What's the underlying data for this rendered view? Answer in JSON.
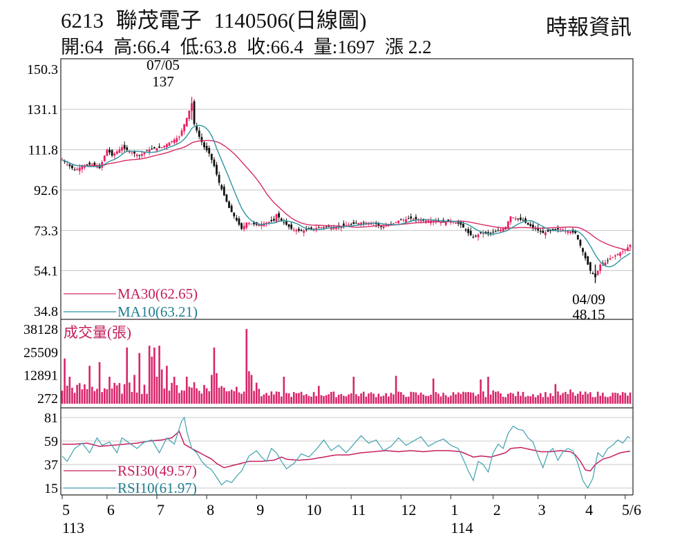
{
  "header": {
    "code": "6213",
    "name": "聯茂電子",
    "date_label": "1140506(日線圖)",
    "source": "時報資訊",
    "open": "開:64",
    "high": "高:66.4",
    "low": "低:63.8",
    "close": "收:66.4",
    "volume": "量:1697",
    "change": "漲 2.2"
  },
  "colors": {
    "up": "#e8205e",
    "down": "#111111",
    "ma30": "#d62a65",
    "ma10": "#2b94a3",
    "volume": "#d8246a",
    "rsi30": "#c41e5e",
    "rsi10": "#3e9fae",
    "grid": "#c8c8c8"
  },
  "chart_data": {
    "type": "candlestick",
    "x_months": [
      {
        "label": "5",
        "year": "113"
      },
      {
        "label": "6"
      },
      {
        "label": "7"
      },
      {
        "label": "8"
      },
      {
        "label": "9"
      },
      {
        "label": "10"
      },
      {
        "label": "11"
      },
      {
        "label": "12"
      },
      {
        "label": "1",
        "year": "114"
      },
      {
        "label": "2"
      },
      {
        "label": "3"
      },
      {
        "label": "4"
      },
      {
        "label": "5/6"
      }
    ],
    "price": {
      "y_ticks": [
        "150.3",
        "131.1",
        "111.8",
        "92.6",
        "73.3",
        "54.1",
        "34.8"
      ],
      "ylim": [
        34.8,
        150.3
      ],
      "annotations": [
        {
          "date": "07/05",
          "value": "137"
        },
        {
          "date": "04/09",
          "value": "48.15"
        }
      ],
      "legend": [
        "MA30(62.65)",
        "MA10(63.21)"
      ],
      "close_keypoints": [
        [
          0,
          107
        ],
        [
          5,
          102
        ],
        [
          8,
          104
        ],
        [
          12,
          105
        ],
        [
          15,
          103
        ],
        [
          18,
          112
        ],
        [
          20,
          109
        ],
        [
          24,
          113
        ],
        [
          27,
          111
        ],
        [
          31,
          109
        ],
        [
          35,
          112
        ],
        [
          40,
          113
        ],
        [
          44,
          116
        ],
        [
          47,
          118
        ],
        [
          50,
          127
        ],
        [
          52,
          134
        ],
        [
          53,
          124
        ],
        [
          55,
          118
        ],
        [
          57,
          113
        ],
        [
          59,
          110
        ],
        [
          61,
          104
        ],
        [
          63,
          96
        ],
        [
          65,
          90
        ],
        [
          67,
          84
        ],
        [
          70,
          78
        ],
        [
          72,
          74
        ],
        [
          74,
          77
        ],
        [
          78,
          76
        ],
        [
          82,
          77
        ],
        [
          85,
          78
        ],
        [
          86,
          81
        ],
        [
          88,
          78
        ],
        [
          90,
          76
        ],
        [
          92,
          74
        ],
        [
          96,
          73
        ],
        [
          100,
          74
        ],
        [
          105,
          75
        ],
        [
          110,
          75
        ],
        [
          115,
          76
        ],
        [
          120,
          77
        ],
        [
          125,
          77
        ],
        [
          128,
          75
        ],
        [
          132,
          76
        ],
        [
          135,
          78
        ],
        [
          140,
          79
        ],
        [
          145,
          78
        ],
        [
          150,
          78
        ],
        [
          153,
          77
        ],
        [
          156,
          78
        ],
        [
          160,
          76
        ],
        [
          163,
          72
        ],
        [
          165,
          70
        ],
        [
          168,
          72
        ],
        [
          172,
          72
        ],
        [
          175,
          73
        ],
        [
          178,
          75
        ],
        [
          180,
          80
        ],
        [
          182,
          79
        ],
        [
          185,
          78
        ],
        [
          187,
          76
        ],
        [
          190,
          74
        ],
        [
          193,
          72
        ],
        [
          196,
          73
        ],
        [
          200,
          74
        ],
        [
          203,
          73
        ],
        [
          206,
          72
        ],
        [
          208,
          66
        ],
        [
          210,
          60
        ],
        [
          212,
          54
        ],
        [
          214,
          51
        ],
        [
          216,
          57
        ],
        [
          218,
          58
        ],
        [
          220,
          60
        ],
        [
          223,
          62
        ],
        [
          226,
          64
        ],
        [
          228,
          66.4
        ]
      ],
      "ma30_final": 62.65,
      "ma10_final": 63.21
    },
    "volume": {
      "title": "成交量(張)",
      "y_ticks": [
        "38128",
        "25509",
        "12891",
        "272"
      ],
      "ylim": [
        272,
        38128
      ],
      "spikes": [
        [
          1,
          22000
        ],
        [
          3,
          12000
        ],
        [
          11,
          18000
        ],
        [
          15,
          20000
        ],
        [
          19,
          12000
        ],
        [
          26,
          28000
        ],
        [
          29,
          13000
        ],
        [
          31,
          25000
        ],
        [
          35,
          29000
        ],
        [
          36,
          23000
        ],
        [
          37,
          28000
        ],
        [
          38,
          12000
        ],
        [
          39,
          29000
        ],
        [
          40,
          16000
        ],
        [
          42,
          18000
        ],
        [
          45,
          12000
        ],
        [
          50,
          12000
        ],
        [
          53,
          9000
        ],
        [
          60,
          13000
        ],
        [
          61,
          28000
        ],
        [
          62,
          14000
        ],
        [
          74,
          38128
        ],
        [
          75,
          15000
        ],
        [
          76,
          13000
        ],
        [
          89,
          12000
        ],
        [
          103,
          7000
        ],
        [
          117,
          12000
        ],
        [
          134,
          12500
        ],
        [
          149,
          11000
        ],
        [
          168,
          10500
        ],
        [
          171,
          12000
        ],
        [
          173,
          4500
        ],
        [
          175,
          4000
        ],
        [
          198,
          8000
        ],
        [
          204,
          5000
        ]
      ]
    },
    "rsi": {
      "y_ticks": [
        "81",
        "59",
        "37",
        "15"
      ],
      "ylim": [
        15,
        81
      ],
      "legend": [
        "RSI30(49.57)",
        "RSI10(61.97)"
      ],
      "rsi30_keypoints": [
        [
          0,
          56
        ],
        [
          5,
          56
        ],
        [
          10,
          57
        ],
        [
          15,
          54
        ],
        [
          20,
          55
        ],
        [
          25,
          56
        ],
        [
          30,
          57
        ],
        [
          35,
          59
        ],
        [
          40,
          60
        ],
        [
          44,
          62
        ],
        [
          47,
          68
        ],
        [
          49,
          56
        ],
        [
          52,
          52
        ],
        [
          56,
          47
        ],
        [
          60,
          42
        ],
        [
          62,
          38
        ],
        [
          65,
          34
        ],
        [
          70,
          37
        ],
        [
          75,
          40
        ],
        [
          80,
          40
        ],
        [
          85,
          41
        ],
        [
          88,
          44
        ],
        [
          90,
          42
        ],
        [
          95,
          41
        ],
        [
          100,
          42
        ],
        [
          105,
          44
        ],
        [
          110,
          46
        ],
        [
          115,
          46
        ],
        [
          120,
          48
        ],
        [
          125,
          49
        ],
        [
          130,
          50
        ],
        [
          135,
          49
        ],
        [
          140,
          50
        ],
        [
          145,
          49
        ],
        [
          150,
          50
        ],
        [
          155,
          50
        ],
        [
          160,
          49
        ],
        [
          163,
          46
        ],
        [
          165,
          44
        ],
        [
          168,
          45
        ],
        [
          172,
          44
        ],
        [
          175,
          46
        ],
        [
          178,
          48
        ],
        [
          180,
          52
        ],
        [
          184,
          53
        ],
        [
          188,
          51
        ],
        [
          192,
          49
        ],
        [
          196,
          49
        ],
        [
          200,
          50
        ],
        [
          204,
          49
        ],
        [
          206,
          46
        ],
        [
          208,
          40
        ],
        [
          210,
          32
        ],
        [
          212,
          31
        ],
        [
          214,
          37
        ],
        [
          217,
          42
        ],
        [
          220,
          44
        ],
        [
          224,
          48
        ],
        [
          228,
          49.57
        ]
      ],
      "rsi10_keypoints": [
        [
          0,
          45
        ],
        [
          2,
          40
        ],
        [
          5,
          52
        ],
        [
          8,
          57
        ],
        [
          11,
          48
        ],
        [
          14,
          62
        ],
        [
          16,
          55
        ],
        [
          19,
          58
        ],
        [
          22,
          48
        ],
        [
          24,
          62
        ],
        [
          27,
          57
        ],
        [
          30,
          52
        ],
        [
          33,
          58
        ],
        [
          36,
          60
        ],
        [
          39,
          48
        ],
        [
          42,
          62
        ],
        [
          45,
          56
        ],
        [
          48,
          78
        ],
        [
          49,
          81
        ],
        [
          50,
          68
        ],
        [
          52,
          52
        ],
        [
          54,
          48
        ],
        [
          56,
          40
        ],
        [
          58,
          35
        ],
        [
          60,
          32
        ],
        [
          62,
          25
        ],
        [
          64,
          18
        ],
        [
          66,
          22
        ],
        [
          68,
          20
        ],
        [
          70,
          26
        ],
        [
          72,
          31
        ],
        [
          75,
          45
        ],
        [
          78,
          50
        ],
        [
          80,
          44
        ],
        [
          82,
          40
        ],
        [
          84,
          52
        ],
        [
          86,
          48
        ],
        [
          88,
          40
        ],
        [
          90,
          33
        ],
        [
          93,
          38
        ],
        [
          96,
          47
        ],
        [
          99,
          44
        ],
        [
          102,
          51
        ],
        [
          105,
          60
        ],
        [
          108,
          50
        ],
        [
          111,
          55
        ],
        [
          114,
          48
        ],
        [
          117,
          56
        ],
        [
          120,
          64
        ],
        [
          123,
          57
        ],
        [
          126,
          60
        ],
        [
          129,
          50
        ],
        [
          132,
          54
        ],
        [
          135,
          62
        ],
        [
          138,
          55
        ],
        [
          141,
          59
        ],
        [
          144,
          63
        ],
        [
          147,
          54
        ],
        [
          150,
          58
        ],
        [
          153,
          61
        ],
        [
          156,
          55
        ],
        [
          159,
          52
        ],
        [
          161,
          42
        ],
        [
          163,
          31
        ],
        [
          165,
          22
        ],
        [
          167,
          40
        ],
        [
          169,
          37
        ],
        [
          171,
          30
        ],
        [
          173,
          48
        ],
        [
          175,
          56
        ],
        [
          177,
          52
        ],
        [
          179,
          66
        ],
        [
          181,
          73
        ],
        [
          183,
          70
        ],
        [
          185,
          69
        ],
        [
          187,
          62
        ],
        [
          189,
          58
        ],
        [
          191,
          45
        ],
        [
          193,
          34
        ],
        [
          195,
          48
        ],
        [
          197,
          52
        ],
        [
          199,
          41
        ],
        [
          201,
          49
        ],
        [
          203,
          52
        ],
        [
          205,
          50
        ],
        [
          207,
          38
        ],
        [
          209,
          22
        ],
        [
          211,
          15
        ],
        [
          213,
          24
        ],
        [
          215,
          48
        ],
        [
          217,
          44
        ],
        [
          219,
          52
        ],
        [
          221,
          55
        ],
        [
          223,
          60
        ],
        [
          225,
          57
        ],
        [
          227,
          63
        ],
        [
          228,
          61.97
        ]
      ]
    }
  }
}
